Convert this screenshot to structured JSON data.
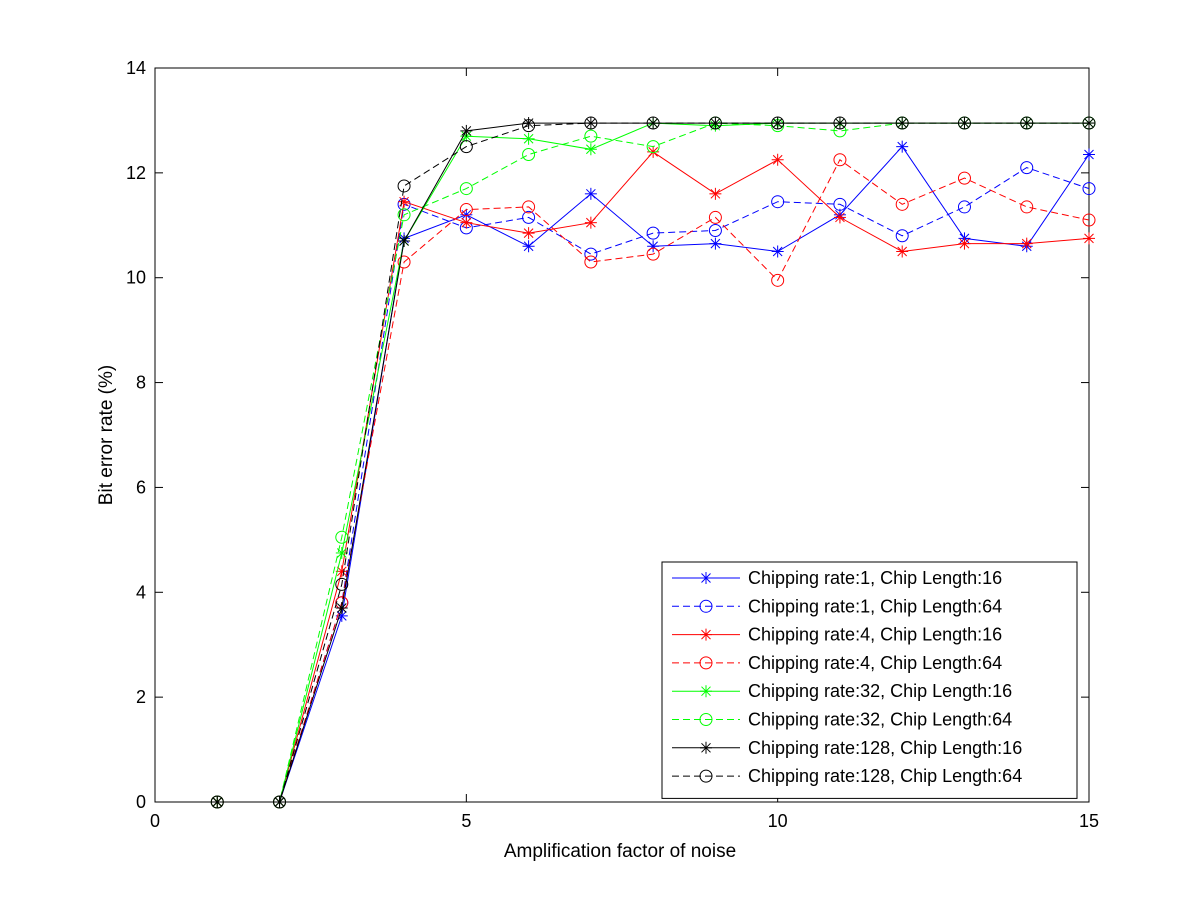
{
  "chart_data": {
    "type": "line",
    "title": "",
    "xlabel": "Amplification factor of noise",
    "ylabel": "Bit error rate (%)",
    "xlim": [
      0,
      15
    ],
    "ylim": [
      0,
      14
    ],
    "xticks": [
      0,
      5,
      10,
      15
    ],
    "yticks": [
      0,
      2,
      4,
      6,
      8,
      10,
      12,
      14
    ],
    "x_tick_labels": [
      "0",
      "5",
      "10",
      "15"
    ],
    "y_tick_labels": [
      "0",
      "2",
      "4",
      "6",
      "8",
      "10",
      "12",
      "14"
    ],
    "grid": false,
    "legend_position": "bottom-right",
    "x": [
      1,
      2,
      3,
      4,
      5,
      6,
      7,
      8,
      9,
      10,
      11,
      12,
      13,
      14,
      15
    ],
    "series": [
      {
        "name": "Chipping rate:1, Chip Length:16",
        "color": "#0000ff",
        "line": "solid",
        "marker": "star",
        "values": [
          0,
          0,
          3.55,
          10.75,
          11.2,
          10.6,
          11.6,
          10.6,
          10.65,
          10.5,
          11.2,
          12.5,
          10.75,
          10.6,
          12.35
        ]
      },
      {
        "name": "Chipping rate:1, Chip Length:64",
        "color": "#0000ff",
        "line": "dashed",
        "marker": "circle",
        "values": [
          0,
          0,
          3.8,
          11.4,
          10.95,
          11.15,
          10.45,
          10.85,
          10.9,
          11.45,
          11.4,
          10.8,
          11.35,
          12.1,
          11.7
        ]
      },
      {
        "name": "Chipping rate:4, Chip Length:16",
        "color": "#ff0000",
        "line": "solid",
        "marker": "star",
        "values": [
          0,
          0,
          4.4,
          11.45,
          11.05,
          10.85,
          11.05,
          12.4,
          11.6,
          12.25,
          11.15,
          10.5,
          10.65,
          10.65,
          10.75
        ]
      },
      {
        "name": "Chipping rate:4, Chip Length:64",
        "color": "#ff0000",
        "line": "dashed",
        "marker": "circle",
        "values": [
          0,
          0,
          3.8,
          10.3,
          11.3,
          11.35,
          10.3,
          10.45,
          11.15,
          9.95,
          12.25,
          11.4,
          11.9,
          11.35,
          11.1
        ]
      },
      {
        "name": "Chipping rate:32, Chip Length:16",
        "color": "#00ff00",
        "line": "solid",
        "marker": "star",
        "values": [
          0,
          0,
          4.75,
          10.7,
          12.7,
          12.65,
          12.45,
          12.95,
          12.9,
          12.95,
          12.95,
          12.95,
          12.95,
          12.95,
          12.95
        ]
      },
      {
        "name": "Chipping rate:32, Chip Length:64",
        "color": "#00ff00",
        "line": "dashed",
        "marker": "circle",
        "values": [
          0,
          0,
          5.05,
          11.2,
          11.7,
          12.35,
          12.7,
          12.5,
          12.95,
          12.9,
          12.8,
          12.95,
          12.95,
          12.95,
          12.95
        ]
      },
      {
        "name": "Chipping rate:128, Chip Length:16",
        "color": "#000000",
        "line": "solid",
        "marker": "star",
        "values": [
          0,
          0,
          3.7,
          10.7,
          12.8,
          12.95,
          12.95,
          12.95,
          12.95,
          12.95,
          12.95,
          12.95,
          12.95,
          12.95,
          12.95
        ]
      },
      {
        "name": "Chipping rate:128, Chip Length:64",
        "color": "#000000",
        "line": "dashed",
        "marker": "circle",
        "values": [
          0,
          0,
          4.15,
          11.75,
          12.5,
          12.9,
          12.95,
          12.95,
          12.95,
          12.95,
          12.95,
          12.95,
          12.95,
          12.95,
          12.95
        ]
      }
    ]
  }
}
